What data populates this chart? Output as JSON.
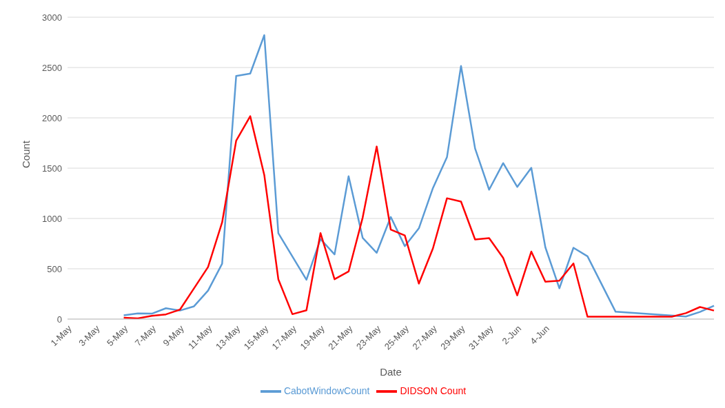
{
  "chart_data": {
    "type": "line",
    "xlabel": "Date",
    "ylabel": "Count",
    "categories": [
      "1-May",
      null,
      "3-May",
      null,
      "5-May",
      null,
      "7-May",
      null,
      "9-May",
      null,
      "11-May",
      null,
      "13-May",
      null,
      "15-May",
      null,
      "17-May",
      null,
      "19-May",
      null,
      "21-May",
      null,
      "23-May",
      null,
      "25-May",
      null,
      "27-May",
      null,
      "29-May",
      null,
      "31-May",
      null,
      "2-Jun",
      null,
      "4-Jun",
      null,
      null,
      null,
      null,
      null,
      null,
      null,
      null,
      null,
      null,
      null,
      null
    ],
    "series": [
      {
        "name": "CabotWindowCount",
        "color": "#5b9bd5",
        "values": [
          null,
          null,
          null,
          null,
          38,
          57,
          54,
          108,
          85,
          127,
          283,
          551,
          2416,
          2440,
          2822,
          853,
          622,
          391,
          796,
          643,
          1420,
          808,
          659,
          1015,
          725,
          902,
          1302,
          1609,
          2515,
          1696,
          1286,
          1550,
          1314,
          1503,
          714,
          306,
          709,
          624,
          null,
          73,
          null,
          null,
          null,
          null,
          26,
          71,
          132
        ]
      },
      {
        "name": "DIDSON Count",
        "color": "#ff0000",
        "values": [
          null,
          null,
          null,
          null,
          14,
          7,
          33,
          47,
          94,
          306,
          518,
          961,
          1773,
          2016,
          1432,
          396,
          49,
          87,
          855,
          396,
          473,
          1008,
          1715,
          890,
          831,
          353,
          702,
          1201,
          1168,
          791,
          805,
          608,
          236,
          671,
          372,
          382,
          553,
          24,
          null,
          null,
          null,
          null,
          null,
          24,
          59,
          120,
          85
        ]
      }
    ],
    "ylim": [
      0,
      3000
    ],
    "yticks": [
      0,
      500,
      1000,
      1500,
      2000,
      2500,
      3000
    ],
    "grid": "y",
    "legend": "bottom",
    "marker": "none",
    "line_style": "solid"
  }
}
